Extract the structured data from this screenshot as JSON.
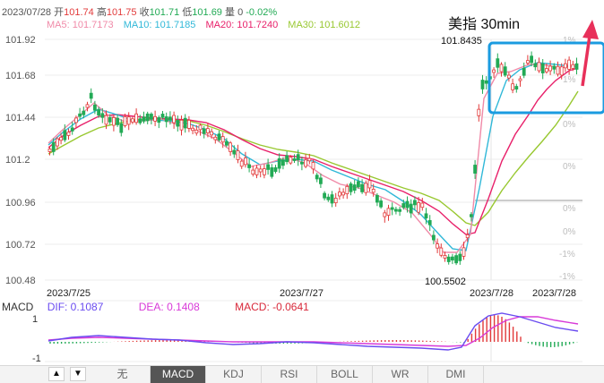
{
  "header": {
    "date": "2023/07/28",
    "open_label": "开",
    "open_value": "101.74",
    "high_label": "高",
    "high_value": "101.75",
    "close_label": "收",
    "close_value": "101.71",
    "low_label": "低",
    "low_value": "101.69",
    "volume_label": "量",
    "volume_value": "0",
    "change": "-0.02%"
  },
  "ma": {
    "ma5": "MA5: 101.7173",
    "ma10": "MA10: 101.7185",
    "ma20": "MA20: 101.7240",
    "ma30": "MA30: 101.6012"
  },
  "annotation": {
    "title": "美指 30min"
  },
  "price_axis": [
    "101.92",
    "101.68",
    "101.44",
    "101.2",
    "100.96",
    "100.72",
    "100.48"
  ],
  "pct_axis": [
    "1%",
    "1%",
    "0%",
    "0%",
    "0%",
    "0%",
    "-1%",
    "-1%"
  ],
  "markers": {
    "high": "101.8435",
    "low": "100.5502"
  },
  "dates": [
    "2023/7/25",
    "2023/7/27",
    "2023/7/28",
    "2023/7/28"
  ],
  "macd": {
    "label": "MACD",
    "dif": "DIF: 0.1087",
    "dea": "DEA: 0.1408",
    "macd": "MACD: -0.0641",
    "axis_top": "1",
    "axis_bottom": "-1"
  },
  "colors": {
    "up": "#e23a3a",
    "down": "#22aa55",
    "ma5": "#f08aa8",
    "ma10": "#30b8d8",
    "ma20": "#e8206a",
    "ma30": "#98c830",
    "dif": "#6a4cf0",
    "dea": "#d83ad8",
    "accent": "#1a9be0",
    "arrow": "#e8305a"
  },
  "toolbar": {
    "up_arrow": "▲",
    "down_arrow": "▼",
    "tabs": [
      "无",
      "MACD",
      "KDJ",
      "RSI",
      "BOLL",
      "WR",
      "DMI"
    ],
    "active_tab": "MACD"
  }
}
